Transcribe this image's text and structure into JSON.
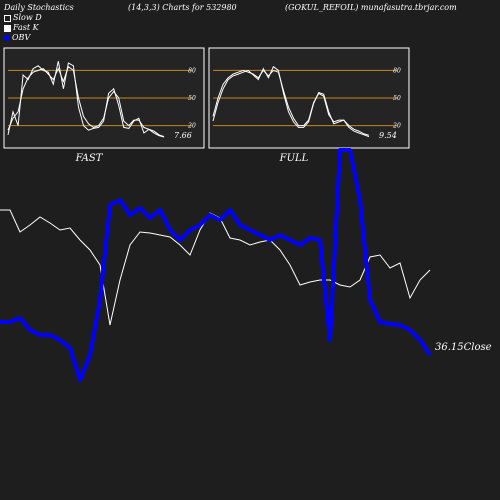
{
  "header": {
    "title": "Daily Stochastics",
    "params": "(14,3,3) Charts for 532980",
    "source": "(GOKUL_REFOIL) munafasutra.tbrjar.com"
  },
  "legend": {
    "slow_label": "Slow  D",
    "fast_label": "Fast K",
    "obv_label": "OBV"
  },
  "colors": {
    "background": "#1e1e1e",
    "panel": "#242424",
    "level_line": "#c8861c",
    "line": "#ffffff",
    "obv": "#0000ff"
  },
  "chart_data": [
    {
      "type": "line",
      "title": "FAST",
      "ylim": [
        0,
        100
      ],
      "yticks": [
        20,
        50,
        80
      ],
      "levels": [
        20,
        50,
        80
      ],
      "last_value_label": "7.66",
      "series": [
        {
          "values": [
            10,
            35,
            20,
            75,
            70,
            82,
            85,
            80,
            78,
            65,
            90,
            60,
            88,
            85,
            40,
            20,
            15,
            17,
            18,
            25,
            55,
            60,
            42,
            18,
            17,
            25,
            28,
            12,
            16,
            14,
            10,
            8
          ]
        },
        {
          "values": [
            15,
            28,
            35,
            60,
            72,
            78,
            80,
            82,
            76,
            70,
            82,
            68,
            84,
            80,
            50,
            30,
            22,
            18,
            20,
            28,
            50,
            57,
            50,
            25,
            20,
            26,
            26,
            18,
            16,
            12,
            9,
            7.66
          ]
        }
      ]
    },
    {
      "type": "line",
      "title": "FULL",
      "ylim": [
        0,
        100
      ],
      "yticks": [
        20,
        50,
        80
      ],
      "levels": [
        20,
        50,
        80
      ],
      "last_value_label": "9.54",
      "series": [
        {
          "values": [
            30,
            50,
            65,
            72,
            76,
            78,
            80,
            78,
            76,
            72,
            80,
            74,
            80,
            78,
            58,
            40,
            28,
            20,
            20,
            26,
            45,
            55,
            52,
            32,
            24,
            26,
            26,
            20,
            16,
            14,
            11,
            9.54
          ]
        },
        {
          "values": [
            25,
            45,
            60,
            70,
            74,
            76,
            78,
            80,
            75,
            70,
            82,
            72,
            84,
            80,
            55,
            35,
            24,
            18,
            18,
            24,
            44,
            56,
            54,
            35,
            22,
            24,
            26,
            18,
            14,
            12,
            10,
            8
          ]
        }
      ]
    },
    {
      "type": "line",
      "series_labels": [
        "Close",
        "OBV"
      ],
      "last_value_label": "36.15Close",
      "series": [
        {
          "values": [
            210,
            210,
            232,
            225,
            217,
            223,
            230,
            228,
            240,
            250,
            265,
            325,
            280,
            245,
            232,
            233,
            235,
            237,
            245,
            255,
            230,
            213,
            218,
            238,
            240,
            245,
            242,
            240,
            250,
            265,
            285,
            282,
            280,
            280,
            285,
            287,
            280,
            257,
            255,
            268,
            263,
            298,
            280,
            270
          ]
        },
        {
          "values": [
            322,
            322,
            318,
            330,
            335,
            335,
            340,
            348,
            380,
            355,
            300,
            205,
            200,
            215,
            208,
            218,
            210,
            230,
            240,
            230,
            225,
            215,
            220,
            210,
            225,
            230,
            235,
            240,
            235,
            240,
            245,
            238,
            240,
            340,
            150,
            150,
            200,
            300,
            322,
            324,
            325,
            330,
            340,
            355
          ]
        }
      ]
    }
  ]
}
